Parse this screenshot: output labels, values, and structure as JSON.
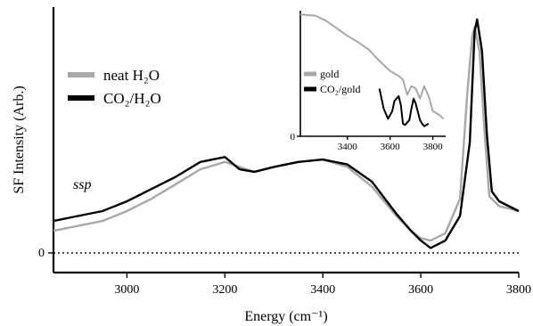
{
  "chart_data": [
    {
      "id": "main",
      "type": "line",
      "xlabel": "Energy (cm⁻¹)",
      "ylabel": "SF Intensity (Arb.)",
      "xlim": [
        2850,
        3800
      ],
      "ylim": [
        -0.08,
        1.0
      ],
      "xticks": [
        3000,
        3200,
        3400,
        3600,
        3800
      ],
      "yticks": [
        {
          "value": 0,
          "label": "0"
        }
      ],
      "zero_line": "dotted",
      "legend_position": "top-left",
      "annotation": "ssp",
      "colors": {
        "neat": "#a8a8a8",
        "co2": "#000000"
      },
      "series": [
        {
          "name": "neat H₂O",
          "key": "neat",
          "x": [
            2850,
            2900,
            2950,
            3000,
            3050,
            3100,
            3150,
            3200,
            3230,
            3260,
            3300,
            3350,
            3400,
            3450,
            3500,
            3550,
            3580,
            3600,
            3620,
            3650,
            3680,
            3695,
            3705,
            3710,
            3720,
            3730,
            3740,
            3760,
            3800
          ],
          "y": [
            0.09,
            0.11,
            0.13,
            0.17,
            0.22,
            0.28,
            0.34,
            0.37,
            0.35,
            0.33,
            0.35,
            0.37,
            0.38,
            0.35,
            0.27,
            0.15,
            0.09,
            0.06,
            0.05,
            0.08,
            0.22,
            0.65,
            0.88,
            0.92,
            0.82,
            0.5,
            0.23,
            0.19,
            0.17
          ]
        },
        {
          "name": "CO₂/H₂O",
          "key": "co2",
          "x": [
            2850,
            2900,
            2950,
            3000,
            3050,
            3100,
            3150,
            3200,
            3230,
            3260,
            3300,
            3350,
            3400,
            3450,
            3500,
            3550,
            3580,
            3600,
            3620,
            3650,
            3680,
            3700,
            3710,
            3715,
            3725,
            3735,
            3745,
            3760,
            3800
          ],
          "y": [
            0.13,
            0.15,
            0.17,
            0.21,
            0.26,
            0.31,
            0.37,
            0.39,
            0.34,
            0.33,
            0.35,
            0.37,
            0.38,
            0.36,
            0.29,
            0.16,
            0.09,
            0.05,
            0.02,
            0.05,
            0.15,
            0.45,
            0.9,
            0.95,
            0.82,
            0.48,
            0.25,
            0.21,
            0.17
          ]
        }
      ]
    },
    {
      "id": "inset",
      "type": "line",
      "xlim": [
        3180,
        3860
      ],
      "ylim": [
        0,
        1.0
      ],
      "xticks": [
        3400,
        3600,
        3800
      ],
      "yticks": [
        {
          "value": 0,
          "label": "0"
        }
      ],
      "legend_position": "left",
      "colors": {
        "gold": "#a8a8a8",
        "co2gold": "#000000"
      },
      "series": [
        {
          "name": "gold",
          "key": "gold",
          "x": [
            3180,
            3250,
            3300,
            3350,
            3400,
            3450,
            3500,
            3550,
            3600,
            3640,
            3660,
            3680,
            3700,
            3720,
            3740,
            3760,
            3780,
            3800,
            3830,
            3850
          ],
          "y": [
            0.97,
            0.96,
            0.92,
            0.86,
            0.8,
            0.75,
            0.69,
            0.6,
            0.52,
            0.48,
            0.45,
            0.33,
            0.4,
            0.38,
            0.3,
            0.4,
            0.32,
            0.2,
            0.17,
            0.14
          ]
        },
        {
          "name": "CO₂/gold",
          "key": "co2gold",
          "x": [
            3550,
            3570,
            3590,
            3610,
            3620,
            3640,
            3650,
            3660,
            3670,
            3690,
            3700,
            3710,
            3720,
            3740,
            3750,
            3760,
            3780
          ],
          "y": [
            0.38,
            0.22,
            0.14,
            0.2,
            0.28,
            0.32,
            0.25,
            0.1,
            0.09,
            0.13,
            0.22,
            0.3,
            0.26,
            0.13,
            0.1,
            0.08,
            0.1
          ]
        }
      ]
    }
  ]
}
